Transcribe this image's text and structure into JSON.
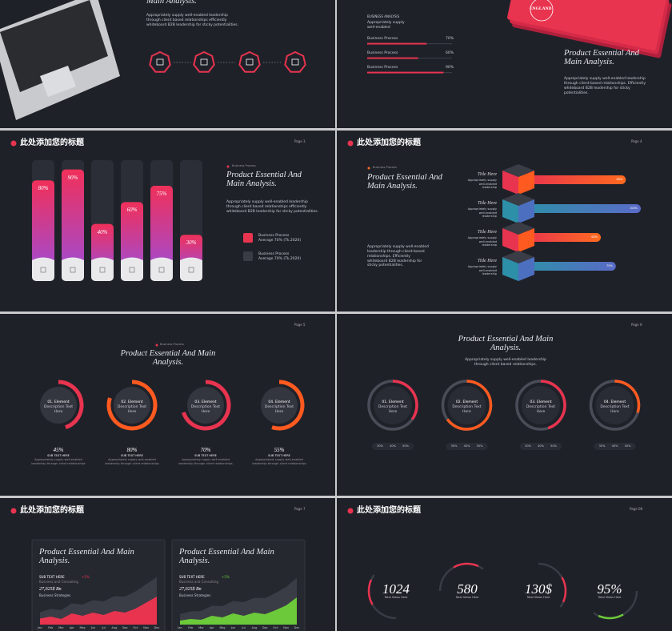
{
  "slide1": {
    "title": "Main Analysis.",
    "body": "Appropriately supply well-enabled leadership through client based relationships efficiently whiteboard B2B leadership for sticky potentialities."
  },
  "slide2": {
    "heading": "BUSINESS ANALYSIS",
    "intro": "Appropriately supply well-enabled",
    "bars": [
      {
        "label": "Business Process",
        "value": 70,
        "value_label": "70%"
      },
      {
        "label": "Business Process",
        "value": 60,
        "value_label": "60%"
      },
      {
        "label": "Business Process",
        "value": 90,
        "value_label": "90%"
      }
    ],
    "badge": "ENGLAND",
    "title": "Product Essential And Main Analysis.",
    "body": "Appropriately supply well-enabled leadership through client-based relationships. Efficiently whiteboard B2B leadership for sticky potentialities."
  },
  "slide3": {
    "header": "此处添加您的标题",
    "page": "Page 3",
    "columns": [
      {
        "value": 80,
        "value_label": "80%"
      },
      {
        "value": 90,
        "value_label": "90%"
      },
      {
        "value": 40,
        "value_label": "40%"
      },
      {
        "value": 60,
        "value_label": "60%"
      },
      {
        "value": 75,
        "value_label": "75%"
      },
      {
        "value": 30,
        "value_label": "30%"
      }
    ],
    "tag": "Business Process",
    "title": "Product Essential And Main Analysis.",
    "body": "Appropriately supply well-enabled leadership through client based relationships efficiently whiteboard B2B leadership for sticky potentialities.",
    "items": [
      {
        "title": "Business Process",
        "text": "Average 70% (Tk.2020)"
      },
      {
        "title": "Business Process",
        "text": "Average 70% (Tk.2020)"
      }
    ]
  },
  "slide4": {
    "header": "此处添加您的标题",
    "page": "Page 4",
    "tag": "Business Process",
    "title": "Product Essential And Main Analysis.",
    "body": "Appropriately supply well-enabled leadership through client-based relationships. Efficiently whiteboard B2B leadership for sticky potentialities.",
    "items": [
      {
        "title": "Title Here",
        "text": "Appropriately supply well-enabled leadership",
        "value": 85,
        "value_label": "85%"
      },
      {
        "title": "Title Here",
        "text": "Appropriately supply well-enabled leadership",
        "value": 100,
        "value_label": "100%"
      },
      {
        "title": "Title Here",
        "text": "Appropriately supply well-enabled leadership",
        "value": 60,
        "value_label": "60%"
      },
      {
        "title": "Title Here",
        "text": "Appropriately supply well-enabled leadership",
        "value": 75,
        "value_label": "75%"
      }
    ]
  },
  "slide5": {
    "page": "Page 5",
    "tag": "Business Process",
    "title": "Product Essential And Main Analysis.",
    "rings": [
      {
        "value": 45,
        "value_label": "45%",
        "name": "01. Element",
        "desc": "Description Text Here",
        "sub": "SUB TEXT HERE",
        "text": "Appropriately supply well-enabled leadership through client relationships"
      },
      {
        "value": 80,
        "value_label": "80%",
        "name": "02. Element",
        "desc": "Description Text Here",
        "sub": "SUB TEXT HERE",
        "text": "Appropriately supply well-enabled leadership through client relationships"
      },
      {
        "value": 70,
        "value_label": "70%",
        "name": "03. Element",
        "desc": "Description Text Here",
        "sub": "SUB TEXT HERE",
        "text": "Appropriately supply well-enabled leadership through client relationships"
      },
      {
        "value": 55,
        "value_label": "55%",
        "name": "04. Element",
        "desc": "Description Text Here",
        "sub": "SUB TEXT HERE",
        "text": "Appropriately supply well-enabled leadership through client relationships"
      }
    ]
  },
  "slide6": {
    "page": "Page 6",
    "title": "Product Essential And Main Analysis.",
    "body": "Appropriately supply well-enabled leadership through client based relationships.",
    "rings": [
      {
        "value": 35,
        "name": "01. Element",
        "desc": "Description Text Here",
        "chips": [
          "30%",
          "40%",
          "50%"
        ]
      },
      {
        "value": 65,
        "name": "02. Element",
        "desc": "Description Text Here",
        "chips": [
          "30%",
          "40%",
          "50%"
        ]
      },
      {
        "value": 45,
        "name": "03. Element",
        "desc": "Description Text Here",
        "chips": [
          "30%",
          "40%",
          "50%"
        ]
      },
      {
        "value": 30,
        "name": "04. Element",
        "desc": "Description Text Here",
        "chips": [
          "30%",
          "40%",
          "50%"
        ]
      }
    ]
  },
  "slide7": {
    "header": "此处添加您的标题",
    "page": "Page 7",
    "cards": [
      {
        "title": "Product Essential And Main Analysis.",
        "sub": "SUB TEXT HERE",
        "note": "Business and Consulting",
        "pct": "+5%",
        "amount": "27,025$ Bn",
        "amount_note": "Business Strategies",
        "color": "#e8344f",
        "months": [
          "Jan",
          "Feb",
          "Mar",
          "Apr",
          "May",
          "Jun",
          "Jul",
          "Aug",
          "Sep",
          "Oct",
          "Nov",
          "Dec"
        ],
        "values": [
          15,
          20,
          14,
          28,
          22,
          30,
          24,
          34,
          30,
          40,
          55,
          70
        ]
      },
      {
        "title": "Product Essential And Main Analysis.",
        "sub": "SUB TEXT HERE",
        "note": "Business and Consulting",
        "pct": "+5%",
        "amount": "27,025$ Bn",
        "amount_note": "Business Strategies",
        "color": "#6cc93a",
        "months": [
          "Jan",
          "Feb",
          "Mar",
          "Apr",
          "May",
          "Jun",
          "Jul",
          "Aug",
          "Sep",
          "Oct",
          "Nov",
          "Dec"
        ],
        "values": [
          10,
          14,
          12,
          22,
          18,
          28,
          22,
          30,
          26,
          36,
          48,
          68
        ]
      }
    ]
  },
  "slide8": {
    "header": "此处添加您的标题",
    "page": "Page 08",
    "stats": [
      {
        "value": "1024",
        "label": "Total Views Here"
      },
      {
        "value": "580",
        "label": "Total Views Here"
      },
      {
        "value": "130$",
        "label": "Total Views Here"
      },
      {
        "value": "95%",
        "label": "Total Views Here"
      }
    ]
  }
}
